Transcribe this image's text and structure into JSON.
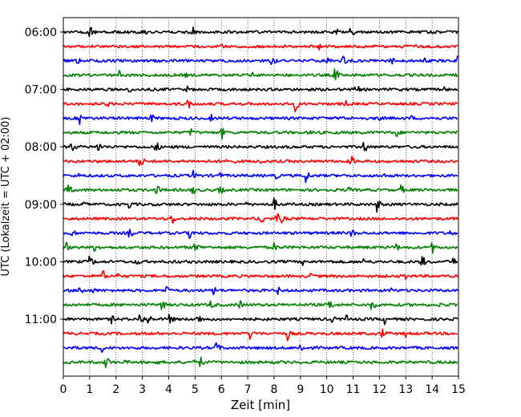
{
  "chart_data": {
    "type": "line",
    "subtype": "helicorder",
    "title": "",
    "xlabel": "Zeit  [min]",
    "ylabel": "UTC (Lokalzeit = UTC + 02:00)",
    "xlim": [
      0,
      15
    ],
    "x_ticks": [
      0,
      1,
      2,
      3,
      4,
      5,
      6,
      7,
      8,
      9,
      10,
      11,
      12,
      13,
      14,
      15
    ],
    "x_tick_labels": [
      "0",
      "1",
      "2",
      "3",
      "4",
      "5",
      "6",
      "7",
      "8",
      "9",
      "10",
      "11",
      "12",
      "13",
      "14",
      "15"
    ],
    "y_tick_labels": [
      "06:00",
      "07:00",
      "08:00",
      "09:00",
      "10:00",
      "11:00"
    ],
    "traces_per_hour": 4,
    "trace_count": 24,
    "trace_colors": [
      "#000000",
      "#ff0000",
      "#0000ff",
      "#008000"
    ],
    "vertical_grid": "dotted",
    "events_min": [
      [
        1.0,
        3.0,
        4.9,
        10.4,
        10.9
      ],
      [
        6.0,
        9.7,
        13.4
      ],
      [
        0.5,
        7.9,
        10.0,
        10.6,
        12.4,
        13.7,
        14.95
      ],
      [
        2.1,
        4.6,
        7.2,
        10.3
      ],
      [
        2.5,
        4.7,
        11.1,
        14.4
      ],
      [
        1.6,
        4.7,
        8.8,
        10.7
      ],
      [
        0.6,
        3.3,
        5.6,
        10.6,
        11.9,
        13.2
      ],
      [
        4.8,
        6.0,
        9.4,
        12.6
      ],
      [
        0.3,
        1.3,
        3.5,
        11.4
      ],
      [
        2.9,
        6.2,
        7.4,
        10.9
      ],
      [
        0.6,
        4.9,
        5.9,
        8.0,
        9.2,
        12.1
      ],
      [
        0.15,
        2.3,
        3.5,
        4.9,
        5.9,
        10.8,
        12.8
      ],
      [
        0.8,
        2.5,
        6.9,
        8.0,
        11.9
      ],
      [
        4.1,
        5.1,
        7.5,
        8.1,
        8.3
      ],
      [
        0.3,
        2.5,
        4.8,
        10.9,
        14.7
      ],
      [
        0.1,
        1.2,
        5.0,
        8.0,
        12.6,
        14.0
      ],
      [
        1.0,
        2.8,
        4.2,
        9.1,
        10.1,
        11.4,
        13.6,
        14.8
      ],
      [
        1.5,
        2.0,
        9.3,
        12.9,
        13.0
      ],
      [
        0.6,
        1.1,
        3.9,
        5.7,
        8.1,
        12.4
      ],
      [
        3.7,
        5.6,
        6.7,
        10.1,
        11.7,
        14.3
      ],
      [
        1.8,
        2.9,
        3.2,
        4.0,
        5.1,
        10.2,
        10.7,
        12.2
      ],
      [
        7.1,
        8.5,
        12.1,
        13.0
      ],
      [
        0.3,
        1.4,
        5.8,
        9.0
      ],
      [
        1.6,
        2.3,
        3.5,
        4.9,
        5.2
      ]
    ]
  }
}
